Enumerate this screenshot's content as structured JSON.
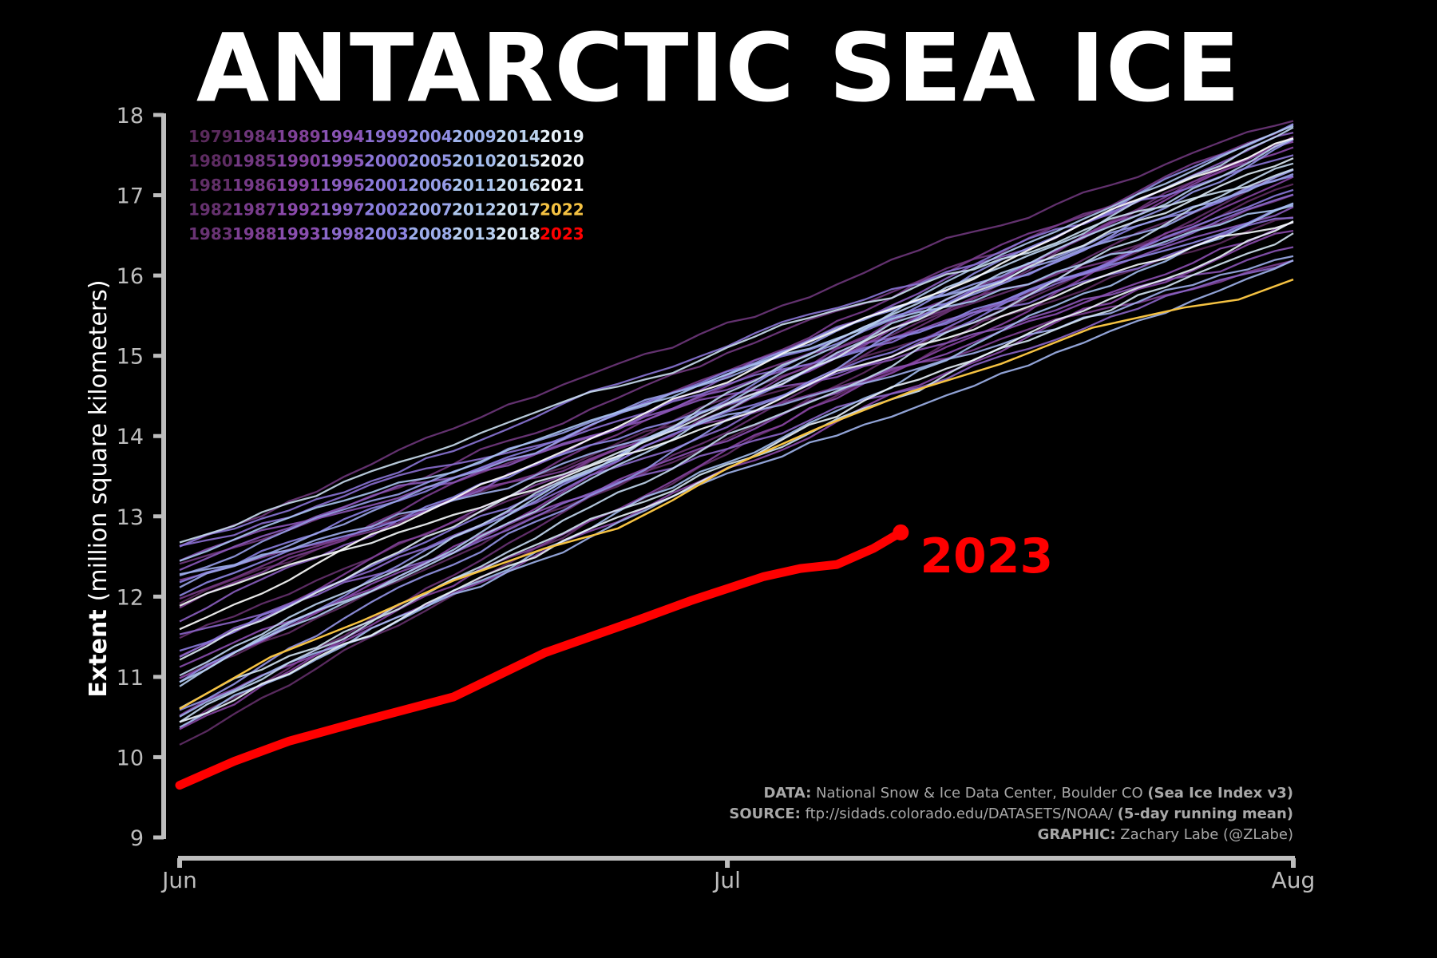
{
  "title": "ANTARCTIC SEA ICE",
  "chart_data": {
    "type": "line",
    "xlabel": "",
    "ylabel_bold": "Extent",
    "ylabel_rest": "(million square kilometers)",
    "ylim": [
      9,
      18
    ],
    "yticks": [
      9,
      10,
      11,
      12,
      13,
      14,
      15,
      16,
      17,
      18
    ],
    "xlim": [
      0,
      61
    ],
    "xticks": [
      {
        "day": 0,
        "label": "Jun"
      },
      {
        "day": 30,
        "label": "Jul"
      },
      {
        "day": 61,
        "label": "Aug"
      }
    ],
    "legend_placement": "top-left",
    "legend_columns": [
      [
        "1979",
        "1980",
        "1981",
        "1982",
        "1983"
      ],
      [
        "1984",
        "1985",
        "1986",
        "1987",
        "1988"
      ],
      [
        "1989",
        "1990",
        "1991",
        "1992",
        "1993"
      ],
      [
        "1994",
        "1995",
        "1996",
        "1997",
        "1998"
      ],
      [
        "1999",
        "2000",
        "2001",
        "2002",
        "2003"
      ],
      [
        "2004",
        "2005",
        "2006",
        "2007",
        "2008"
      ],
      [
        "2009",
        "2010",
        "2011",
        "2012",
        "2013"
      ],
      [
        "2014",
        "2015",
        "2016",
        "2017",
        "2018"
      ],
      [
        "2019",
        "2020",
        "2021",
        "2022",
        "2023"
      ]
    ],
    "colors": {
      "background": "#000000",
      "axis": "#bdbdbd",
      "year_2022": "#f5c242",
      "year_2023": "#ff0000",
      "early_years": "#5a2a5c",
      "late_years": "#ffffff"
    },
    "series_2023": {
      "name": "2023",
      "x": [
        0,
        3,
        6,
        10,
        15,
        20,
        25,
        28,
        30,
        32,
        34,
        36,
        38,
        39.5
      ],
      "y": [
        9.65,
        9.95,
        10.2,
        10.45,
        10.75,
        11.3,
        11.7,
        11.95,
        12.1,
        12.25,
        12.35,
        12.4,
        12.6,
        12.8
      ]
    },
    "series_2022": {
      "name": "2022",
      "x": [
        0,
        5,
        10,
        15,
        20,
        24,
        27,
        30,
        35,
        40,
        45,
        50,
        55,
        58,
        61
      ],
      "y": [
        10.6,
        11.25,
        11.7,
        12.2,
        12.6,
        12.85,
        13.2,
        13.6,
        14.1,
        14.55,
        14.9,
        15.35,
        15.6,
        15.7,
        15.95
      ]
    },
    "envelope_years": {
      "first_year": 1979,
      "last_year": 2021,
      "start_values": [
        10.1,
        10.8,
        11.2,
        11.5,
        11.9,
        12.3,
        12.85
      ],
      "end_values": [
        16.15,
        16.4,
        16.7,
        17.0,
        17.3,
        17.65,
        17.95
      ]
    },
    "annotation_2023": "2023",
    "footer": [
      {
        "bold": "DATA:",
        "text": " National Snow & Ice Data Center, Boulder CO ",
        "bold2": "(Sea Ice Index v3)"
      },
      {
        "bold": "SOURCE:",
        "text": " ftp://sidads.colorado.edu/DATASETS/NOAA/ ",
        "bold2": "(5-day running mean)"
      },
      {
        "bold": "GRAPHIC:",
        "text": " Zachary Labe (@ZLabe)",
        "bold2": ""
      }
    ]
  }
}
